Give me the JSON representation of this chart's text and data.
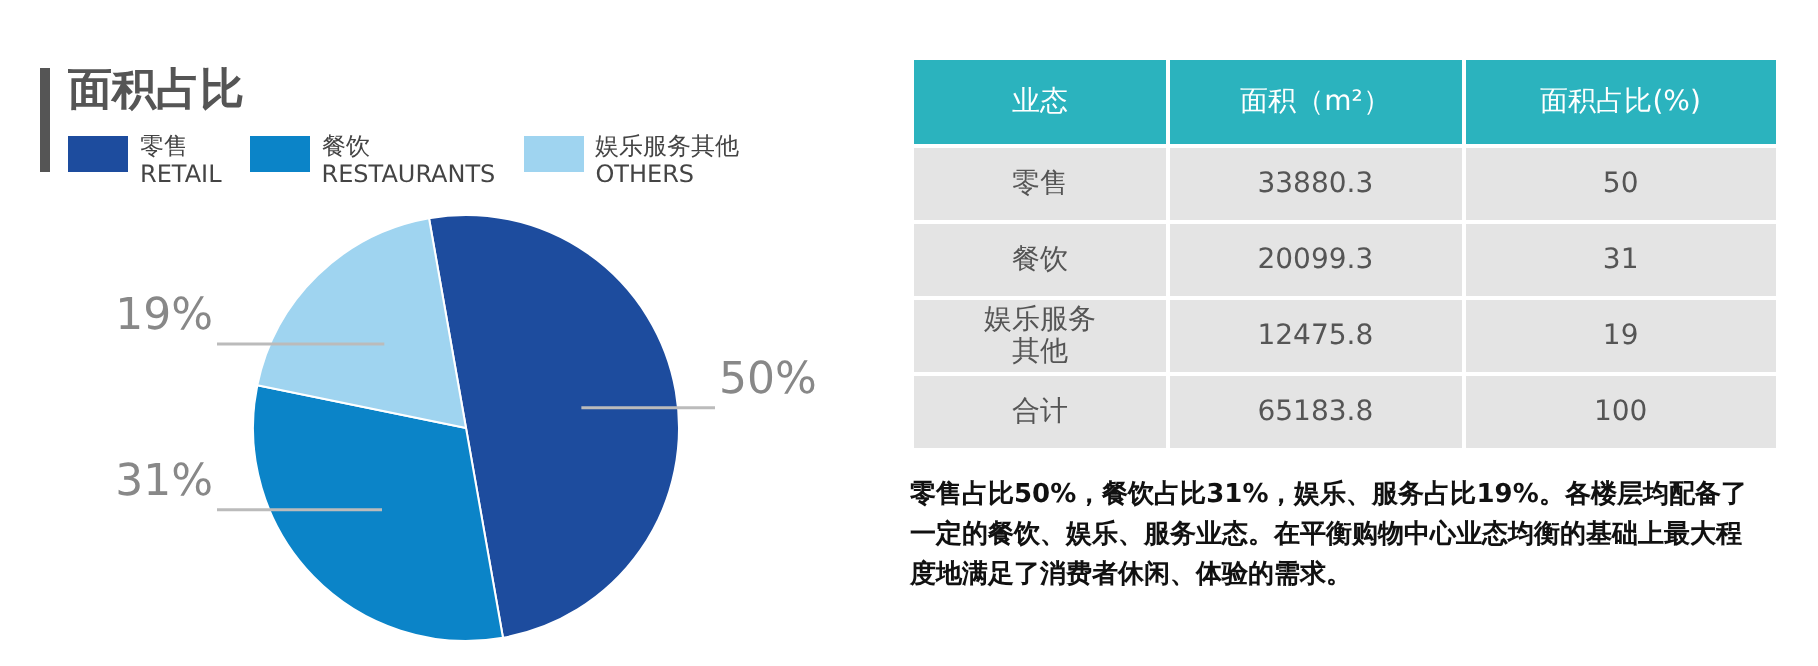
{
  "chart_data": [
    {
      "type": "pie",
      "title": "面积占比",
      "categories": [
        "零售\nRETAIL",
        "餐饮\nRESTAURANTS",
        "娱乐服务其他\nOTHERS"
      ],
      "values": [
        50,
        31,
        19
      ],
      "colors": [
        "#1d4c9e",
        "#0b84c8",
        "#9fd4f0"
      ],
      "value_labels": [
        "50%",
        "31%",
        "19%"
      ],
      "legend": "top"
    },
    {
      "type": "other",
      "xlabel": "业态",
      "categories": [
        "零售",
        "餐饮",
        "娱乐服务其他",
        "合计"
      ],
      "data_labels": true,
      "series": [
        {
          "name": "面积（m²）",
          "values": [
            33880.3,
            20099.3,
            12475.8,
            65183.8
          ]
        },
        {
          "name": "面积占比(%)",
          "values": [
            50,
            31,
            19,
            100
          ]
        }
      ],
      "annotations": [
        "零售占比50%，餐饮占比31%，娱乐、服务占比19%。各楼层均配备了一定的餐饮、娱乐、服务业态。在平衡购物中心业态均衡的基础上最大程度地满足了消费者休闲、体验的需求。"
      ]
    }
  ]
}
